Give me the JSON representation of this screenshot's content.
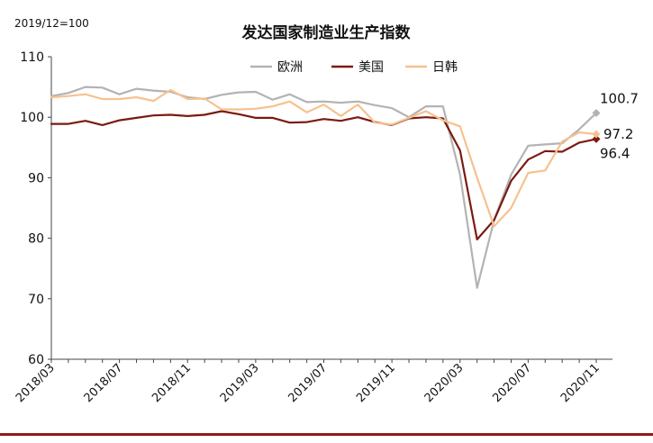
{
  "chart_data": {
    "type": "line",
    "title": "发达国家制造业生产指数",
    "note": "2019/12=100",
    "xlabel": "",
    "ylabel": "",
    "ylim": [
      60,
      110
    ],
    "yticks": [
      60,
      70,
      80,
      90,
      100,
      110
    ],
    "xticks": [
      "2018/03",
      "2018/07",
      "2018/11",
      "2019/03",
      "2019/07",
      "2019/11",
      "2020/03",
      "2020/07",
      "2020/11"
    ],
    "x": [
      "2018/03",
      "2018/04",
      "2018/05",
      "2018/06",
      "2018/07",
      "2018/08",
      "2018/09",
      "2018/10",
      "2018/11",
      "2018/12",
      "2019/01",
      "2019/02",
      "2019/03",
      "2019/04",
      "2019/05",
      "2019/06",
      "2019/07",
      "2019/08",
      "2019/09",
      "2019/10",
      "2019/11",
      "2019/12",
      "2020/01",
      "2020/02",
      "2020/03",
      "2020/04",
      "2020/05",
      "2020/06",
      "2020/07",
      "2020/08",
      "2020/09",
      "2020/10",
      "2020/11"
    ],
    "legend_position": "top-center",
    "grid": false,
    "series": [
      {
        "name": "欧洲",
        "color": "#b3b3b3",
        "values": [
          103.5,
          104.0,
          105.0,
          104.9,
          103.8,
          104.7,
          104.4,
          104.2,
          103.3,
          103.0,
          103.7,
          104.1,
          104.2,
          102.9,
          103.8,
          102.5,
          102.6,
          102.4,
          102.6,
          102.0,
          101.5,
          100.0,
          101.8,
          101.8,
          90.5,
          71.8,
          83.0,
          90.5,
          95.3,
          95.5,
          95.7,
          98.0,
          100.7
        ],
        "end_label": "100.7"
      },
      {
        "name": "美国",
        "color": "#7b1a10",
        "values": [
          98.9,
          98.9,
          99.4,
          98.7,
          99.5,
          99.9,
          100.3,
          100.4,
          100.2,
          100.4,
          101.0,
          100.5,
          99.9,
          99.9,
          99.1,
          99.2,
          99.7,
          99.4,
          100.0,
          99.2,
          98.7,
          99.8,
          100.0,
          99.8,
          94.5,
          79.8,
          83.0,
          89.5,
          93.0,
          94.4,
          94.3,
          95.8,
          96.4
        ],
        "end_label": "96.4"
      },
      {
        "name": "日韩",
        "color": "#f7c18f",
        "values": [
          103.3,
          103.5,
          103.8,
          103.0,
          103.0,
          103.3,
          102.7,
          104.5,
          103.0,
          103.1,
          101.3,
          101.3,
          101.4,
          101.8,
          102.6,
          100.8,
          102.1,
          100.2,
          102.1,
          99.1,
          98.8,
          99.9,
          101.0,
          99.5,
          98.5,
          90.0,
          82.0,
          85.0,
          90.8,
          91.2,
          96.0,
          97.5,
          97.2
        ],
        "end_label": "97.2"
      }
    ]
  }
}
